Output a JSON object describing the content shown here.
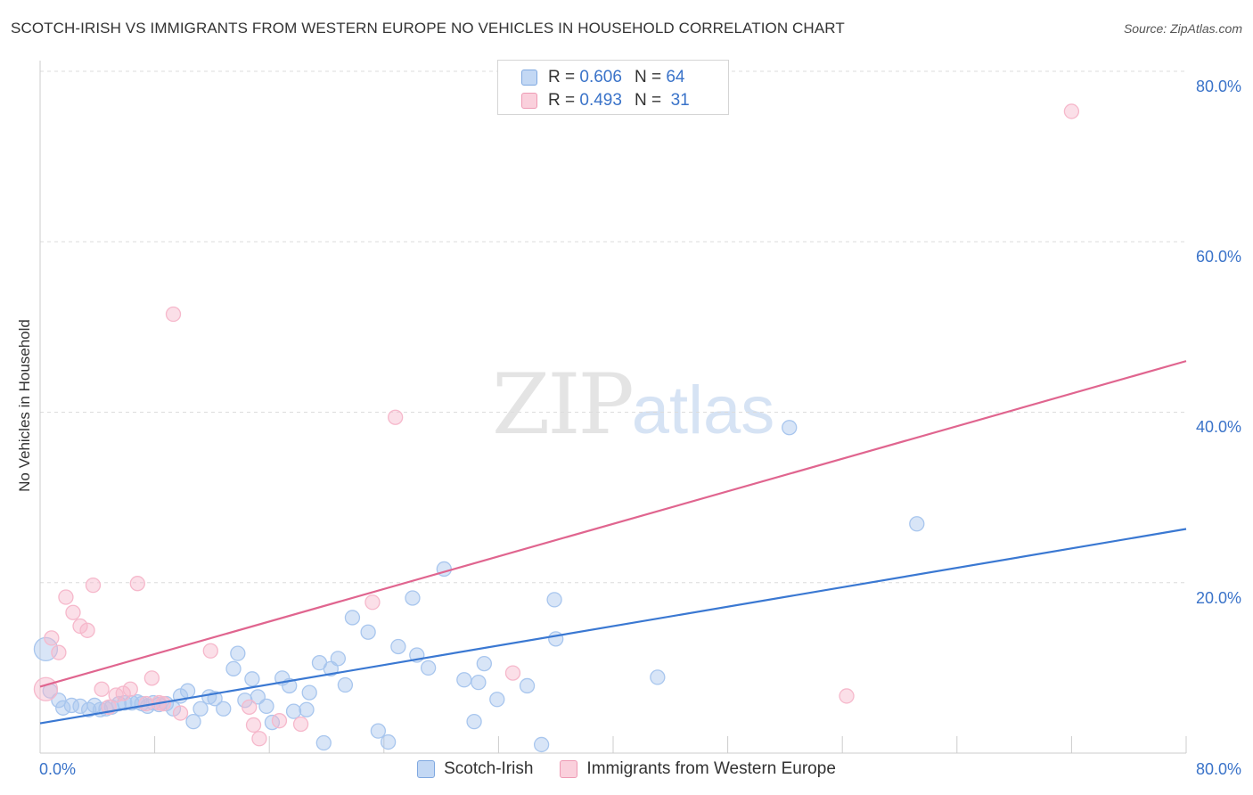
{
  "header": {
    "title": "SCOTCH-IRISH VS IMMIGRANTS FROM WESTERN EUROPE NO VEHICLES IN HOUSEHOLD CORRELATION CHART",
    "source": "Source: ZipAtlas.com"
  },
  "watermark": {
    "zip": "ZIP",
    "atlas": "atlas"
  },
  "legend": {
    "rows": [
      {
        "r_label": "R =",
        "r_value": "0.606",
        "n_label": "N =",
        "n_value": "64",
        "color": "#a8c6ee"
      },
      {
        "r_label": "R =",
        "r_value": "0.493",
        "n_label": "N =",
        "n_value": "31",
        "color": "#f6b8cb"
      }
    ]
  },
  "axes": {
    "ylabel": "No Vehicles in Household",
    "x_tick_labels": {
      "left": "0.0%",
      "right": "80.0%"
    },
    "y_tick_labels": [
      "80.0%",
      "60.0%",
      "40.0%",
      "20.0%"
    ]
  },
  "chart_data": {
    "type": "scatter",
    "title": "SCOTCH-IRISH VS IMMIGRANTS FROM WESTERN EUROPE NO VEHICLES IN HOUSEHOLD CORRELATION CHART",
    "xlabel": "",
    "ylabel": "No Vehicles in Household",
    "xlim": [
      0,
      80
    ],
    "ylim": [
      0,
      82
    ],
    "y_ticks": [
      20,
      40,
      60,
      80
    ],
    "grid": true,
    "legend_position": "bottom",
    "series": [
      {
        "name": "Scotch-Irish",
        "color": "#3a78d2",
        "fill": "#a8c6ee",
        "R": 0.606,
        "N": 64,
        "trend": {
          "x": [
            0,
            80
          ],
          "y": [
            3.5,
            26.3
          ]
        },
        "points": [
          [
            0.4,
            12.2,
            2
          ],
          [
            0.7,
            7.3,
            1
          ],
          [
            1.3,
            6.2,
            1
          ],
          [
            1.6,
            5.3,
            1
          ],
          [
            2.2,
            5.6,
            1
          ],
          [
            2.8,
            5.5,
            1
          ],
          [
            3.4,
            5.1,
            1
          ],
          [
            3.8,
            5.6,
            1
          ],
          [
            4.2,
            5.1,
            1
          ],
          [
            4.6,
            5.2,
            1
          ],
          [
            5.0,
            5.4,
            1
          ],
          [
            5.5,
            5.8,
            1
          ],
          [
            5.9,
            5.9,
            1
          ],
          [
            6.4,
            5.9,
            1
          ],
          [
            6.8,
            6.0,
            1
          ],
          [
            7.1,
            5.8,
            1
          ],
          [
            7.5,
            5.5,
            1
          ],
          [
            7.9,
            5.9,
            1
          ],
          [
            8.3,
            5.7,
            1
          ],
          [
            8.8,
            5.8,
            1
          ],
          [
            9.3,
            5.2,
            1
          ],
          [
            9.8,
            6.7,
            1
          ],
          [
            10.3,
            7.3,
            1
          ],
          [
            10.7,
            3.7,
            1
          ],
          [
            11.2,
            5.2,
            1
          ],
          [
            11.8,
            6.6,
            1
          ],
          [
            12.2,
            6.4,
            1
          ],
          [
            12.8,
            5.2,
            1
          ],
          [
            13.5,
            9.9,
            1
          ],
          [
            13.8,
            11.7,
            1
          ],
          [
            14.3,
            6.2,
            1
          ],
          [
            14.8,
            8.7,
            1
          ],
          [
            15.2,
            6.6,
            1
          ],
          [
            15.8,
            5.5,
            1
          ],
          [
            16.2,
            3.6,
            1
          ],
          [
            16.9,
            8.8,
            1
          ],
          [
            17.4,
            7.9,
            1
          ],
          [
            17.7,
            4.9,
            1
          ],
          [
            18.6,
            5.1,
            1
          ],
          [
            18.8,
            7.1,
            1
          ],
          [
            19.5,
            10.6,
            1
          ],
          [
            19.8,
            1.2,
            1
          ],
          [
            20.3,
            9.9,
            1
          ],
          [
            20.8,
            11.1,
            1
          ],
          [
            21.3,
            8.0,
            1
          ],
          [
            21.8,
            15.9,
            1
          ],
          [
            22.9,
            14.2,
            1
          ],
          [
            23.6,
            2.6,
            1
          ],
          [
            24.3,
            1.3,
            1
          ],
          [
            25.0,
            12.5,
            1
          ],
          [
            26.0,
            18.2,
            1
          ],
          [
            26.3,
            11.5,
            1
          ],
          [
            27.1,
            10.0,
            1
          ],
          [
            28.2,
            21.6,
            1
          ],
          [
            29.6,
            8.6,
            1
          ],
          [
            30.3,
            3.7,
            1
          ],
          [
            30.6,
            8.3,
            1
          ],
          [
            31.0,
            10.5,
            1
          ],
          [
            31.9,
            6.3,
            1
          ],
          [
            34.0,
            7.9,
            1
          ],
          [
            35.0,
            1.0,
            1
          ],
          [
            35.9,
            18.0,
            1
          ],
          [
            36.0,
            13.4,
            1
          ],
          [
            43.1,
            8.9,
            1
          ],
          [
            52.3,
            38.2,
            1
          ],
          [
            61.2,
            26.9,
            1
          ]
        ]
      },
      {
        "name": "Immigrants from Western Europe",
        "color": "#e0658f",
        "fill": "#f6b8cb",
        "R": 0.493,
        "N": 31,
        "trend": {
          "x": [
            0,
            80
          ],
          "y": [
            7.8,
            46.0
          ]
        },
        "points": [
          [
            0.4,
            7.5,
            2
          ],
          [
            0.8,
            13.5,
            1
          ],
          [
            1.3,
            11.8,
            1
          ],
          [
            1.8,
            18.3,
            1
          ],
          [
            2.3,
            16.5,
            1
          ],
          [
            2.8,
            14.9,
            1
          ],
          [
            3.3,
            14.4,
            1
          ],
          [
            3.7,
            19.7,
            1
          ],
          [
            4.3,
            7.5,
            1
          ],
          [
            4.8,
            5.4,
            1
          ],
          [
            5.3,
            6.8,
            1
          ],
          [
            5.8,
            7.0,
            1
          ],
          [
            6.3,
            7.5,
            1
          ],
          [
            6.8,
            19.9,
            1
          ],
          [
            7.4,
            5.8,
            1
          ],
          [
            7.8,
            8.8,
            1
          ],
          [
            8.3,
            5.9,
            1
          ],
          [
            8.6,
            5.8,
            1
          ],
          [
            9.3,
            51.5,
            1
          ],
          [
            9.8,
            4.7,
            1
          ],
          [
            11.9,
            12.0,
            1
          ],
          [
            14.6,
            5.4,
            1
          ],
          [
            14.9,
            3.3,
            1
          ],
          [
            15.3,
            1.7,
            1
          ],
          [
            16.7,
            3.8,
            1
          ],
          [
            18.2,
            3.4,
            1
          ],
          [
            23.2,
            17.7,
            1
          ],
          [
            24.8,
            39.4,
            1
          ],
          [
            33.0,
            9.4,
            1
          ],
          [
            56.3,
            6.7,
            1
          ],
          [
            72.0,
            75.3,
            1
          ]
        ]
      }
    ]
  }
}
